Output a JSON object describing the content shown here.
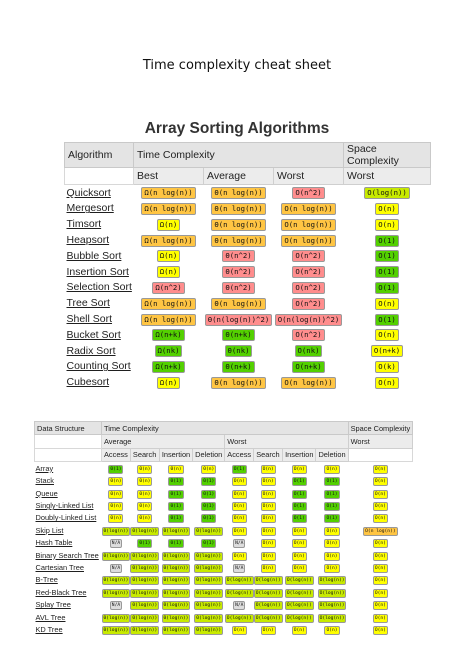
{
  "document": {
    "title": "Time complexity cheat sheet",
    "sorting_section_title": "Array Sorting Algorithms"
  },
  "sorting": {
    "headers": {
      "algorithm": "Algorithm",
      "time_complexity": "Time Complexity",
      "space_complexity": "Space Complexity",
      "best": "Best",
      "average": "Average",
      "worst": "Worst",
      "space_worst": "Worst"
    },
    "rows": [
      {
        "name": "Quicksort",
        "best": {
          "t": "Ω(n log(n))",
          "c": "o"
        },
        "avg": {
          "t": "Θ(n log(n))",
          "c": "o"
        },
        "worst": {
          "t": "O(n^2)",
          "c": "r"
        },
        "space": {
          "t": "O(log(n))",
          "c": "yg"
        }
      },
      {
        "name": "Mergesort",
        "best": {
          "t": "Ω(n log(n))",
          "c": "o"
        },
        "avg": {
          "t": "Θ(n log(n))",
          "c": "o"
        },
        "worst": {
          "t": "O(n log(n))",
          "c": "o"
        },
        "space": {
          "t": "O(n)",
          "c": "y"
        }
      },
      {
        "name": "Timsort",
        "best": {
          "t": "Ω(n)",
          "c": "y"
        },
        "avg": {
          "t": "Θ(n log(n))",
          "c": "o"
        },
        "worst": {
          "t": "O(n log(n))",
          "c": "o"
        },
        "space": {
          "t": "O(n)",
          "c": "y"
        }
      },
      {
        "name": "Heapsort",
        "best": {
          "t": "Ω(n log(n))",
          "c": "o"
        },
        "avg": {
          "t": "Θ(n log(n))",
          "c": "o"
        },
        "worst": {
          "t": "O(n log(n))",
          "c": "o"
        },
        "space": {
          "t": "O(1)",
          "c": "g"
        }
      },
      {
        "name": "Bubble Sort",
        "best": {
          "t": "Ω(n)",
          "c": "y"
        },
        "avg": {
          "t": "Θ(n^2)",
          "c": "r"
        },
        "worst": {
          "t": "O(n^2)",
          "c": "r"
        },
        "space": {
          "t": "O(1)",
          "c": "g"
        }
      },
      {
        "name": "Insertion Sort",
        "best": {
          "t": "Ω(n)",
          "c": "y"
        },
        "avg": {
          "t": "Θ(n^2)",
          "c": "r"
        },
        "worst": {
          "t": "O(n^2)",
          "c": "r"
        },
        "space": {
          "t": "O(1)",
          "c": "g"
        }
      },
      {
        "name": "Selection Sort",
        "best": {
          "t": "Ω(n^2)",
          "c": "r"
        },
        "avg": {
          "t": "Θ(n^2)",
          "c": "r"
        },
        "worst": {
          "t": "O(n^2)",
          "c": "r"
        },
        "space": {
          "t": "O(1)",
          "c": "g"
        }
      },
      {
        "name": "Tree Sort",
        "best": {
          "t": "Ω(n log(n))",
          "c": "o"
        },
        "avg": {
          "t": "Θ(n log(n))",
          "c": "o"
        },
        "worst": {
          "t": "O(n^2)",
          "c": "r"
        },
        "space": {
          "t": "O(n)",
          "c": "y"
        }
      },
      {
        "name": "Shell Sort",
        "best": {
          "t": "Ω(n log(n))",
          "c": "o"
        },
        "avg": {
          "t": "Θ(n(log(n))^2)",
          "c": "r"
        },
        "worst": {
          "t": "O(n(log(n))^2)",
          "c": "r"
        },
        "space": {
          "t": "O(1)",
          "c": "g"
        }
      },
      {
        "name": "Bucket Sort",
        "best": {
          "t": "Ω(n+k)",
          "c": "g"
        },
        "avg": {
          "t": "Θ(n+k)",
          "c": "g"
        },
        "worst": {
          "t": "O(n^2)",
          "c": "r"
        },
        "space": {
          "t": "O(n)",
          "c": "y"
        }
      },
      {
        "name": "Radix Sort",
        "best": {
          "t": "Ω(nk)",
          "c": "g"
        },
        "avg": {
          "t": "Θ(nk)",
          "c": "g"
        },
        "worst": {
          "t": "O(nk)",
          "c": "g"
        },
        "space": {
          "t": "O(n+k)",
          "c": "y"
        }
      },
      {
        "name": "Counting Sort",
        "best": {
          "t": "Ω(n+k)",
          "c": "g"
        },
        "avg": {
          "t": "Θ(n+k)",
          "c": "g"
        },
        "worst": {
          "t": "O(n+k)",
          "c": "g"
        },
        "space": {
          "t": "O(k)",
          "c": "y"
        }
      },
      {
        "name": "Cubesort",
        "best": {
          "t": "Ω(n)",
          "c": "y"
        },
        "avg": {
          "t": "Θ(n log(n))",
          "c": "o"
        },
        "worst": {
          "t": "O(n log(n))",
          "c": "o"
        },
        "space": {
          "t": "O(n)",
          "c": "y"
        }
      }
    ]
  },
  "data_structures": {
    "headers": {
      "data_structure": "Data Structure",
      "time_complexity": "Time Complexity",
      "space_complexity": "Space Complexity",
      "average": "Average",
      "worst": "Worst",
      "space_worst": "Worst",
      "ops": [
        "Access",
        "Search",
        "Insertion",
        "Deletion",
        "Access",
        "Search",
        "Insertion",
        "Deletion"
      ]
    },
    "rows": [
      {
        "name": "Array",
        "cells": [
          {
            "t": "Θ(1)",
            "c": "g"
          },
          {
            "t": "Θ(n)",
            "c": "y"
          },
          {
            "t": "Θ(n)",
            "c": "y"
          },
          {
            "t": "Θ(n)",
            "c": "y"
          },
          {
            "t": "O(1)",
            "c": "g"
          },
          {
            "t": "O(n)",
            "c": "y"
          },
          {
            "t": "O(n)",
            "c": "y"
          },
          {
            "t": "O(n)",
            "c": "y"
          },
          {
            "t": "O(n)",
            "c": "y"
          }
        ]
      },
      {
        "name": "Stack",
        "cells": [
          {
            "t": "Θ(n)",
            "c": "y"
          },
          {
            "t": "Θ(n)",
            "c": "y"
          },
          {
            "t": "Θ(1)",
            "c": "g"
          },
          {
            "t": "Θ(1)",
            "c": "g"
          },
          {
            "t": "O(n)",
            "c": "y"
          },
          {
            "t": "O(n)",
            "c": "y"
          },
          {
            "t": "O(1)",
            "c": "g"
          },
          {
            "t": "O(1)",
            "c": "g"
          },
          {
            "t": "O(n)",
            "c": "y"
          }
        ]
      },
      {
        "name": "Queue",
        "cells": [
          {
            "t": "Θ(n)",
            "c": "y"
          },
          {
            "t": "Θ(n)",
            "c": "y"
          },
          {
            "t": "Θ(1)",
            "c": "g"
          },
          {
            "t": "Θ(1)",
            "c": "g"
          },
          {
            "t": "O(n)",
            "c": "y"
          },
          {
            "t": "O(n)",
            "c": "y"
          },
          {
            "t": "O(1)",
            "c": "g"
          },
          {
            "t": "O(1)",
            "c": "g"
          },
          {
            "t": "O(n)",
            "c": "y"
          }
        ]
      },
      {
        "name": "Singly-Linked List",
        "cells": [
          {
            "t": "Θ(n)",
            "c": "y"
          },
          {
            "t": "Θ(n)",
            "c": "y"
          },
          {
            "t": "Θ(1)",
            "c": "g"
          },
          {
            "t": "Θ(1)",
            "c": "g"
          },
          {
            "t": "O(n)",
            "c": "y"
          },
          {
            "t": "O(n)",
            "c": "y"
          },
          {
            "t": "O(1)",
            "c": "g"
          },
          {
            "t": "O(1)",
            "c": "g"
          },
          {
            "t": "O(n)",
            "c": "y"
          }
        ]
      },
      {
        "name": "Doubly-Linked List",
        "cells": [
          {
            "t": "Θ(n)",
            "c": "y"
          },
          {
            "t": "Θ(n)",
            "c": "y"
          },
          {
            "t": "Θ(1)",
            "c": "g"
          },
          {
            "t": "Θ(1)",
            "c": "g"
          },
          {
            "t": "O(n)",
            "c": "y"
          },
          {
            "t": "O(n)",
            "c": "y"
          },
          {
            "t": "O(1)",
            "c": "g"
          },
          {
            "t": "O(1)",
            "c": "g"
          },
          {
            "t": "O(n)",
            "c": "y"
          }
        ]
      },
      {
        "name": "Skip List",
        "cells": [
          {
            "t": "Θ(log(n))",
            "c": "yg"
          },
          {
            "t": "Θ(log(n))",
            "c": "yg"
          },
          {
            "t": "Θ(log(n))",
            "c": "yg"
          },
          {
            "t": "Θ(log(n))",
            "c": "yg"
          },
          {
            "t": "O(n)",
            "c": "y"
          },
          {
            "t": "O(n)",
            "c": "y"
          },
          {
            "t": "O(n)",
            "c": "y"
          },
          {
            "t": "O(n)",
            "c": "y"
          },
          {
            "t": "O(n log(n))",
            "c": "o"
          }
        ]
      },
      {
        "name": "Hash Table",
        "cells": [
          {
            "t": "N/A",
            "c": "gr"
          },
          {
            "t": "Θ(1)",
            "c": "g"
          },
          {
            "t": "Θ(1)",
            "c": "g"
          },
          {
            "t": "Θ(1)",
            "c": "g"
          },
          {
            "t": "N/A",
            "c": "gr"
          },
          {
            "t": "O(n)",
            "c": "y"
          },
          {
            "t": "O(n)",
            "c": "y"
          },
          {
            "t": "O(n)",
            "c": "y"
          },
          {
            "t": "O(n)",
            "c": "y"
          }
        ]
      },
      {
        "name": "Binary Search Tree",
        "cells": [
          {
            "t": "Θ(log(n))",
            "c": "yg"
          },
          {
            "t": "Θ(log(n))",
            "c": "yg"
          },
          {
            "t": "Θ(log(n))",
            "c": "yg"
          },
          {
            "t": "Θ(log(n))",
            "c": "yg"
          },
          {
            "t": "O(n)",
            "c": "y"
          },
          {
            "t": "O(n)",
            "c": "y"
          },
          {
            "t": "O(n)",
            "c": "y"
          },
          {
            "t": "O(n)",
            "c": "y"
          },
          {
            "t": "O(n)",
            "c": "y"
          }
        ]
      },
      {
        "name": "Cartesian Tree",
        "cells": [
          {
            "t": "N/A",
            "c": "gr"
          },
          {
            "t": "Θ(log(n))",
            "c": "yg"
          },
          {
            "t": "Θ(log(n))",
            "c": "yg"
          },
          {
            "t": "Θ(log(n))",
            "c": "yg"
          },
          {
            "t": "N/A",
            "c": "gr"
          },
          {
            "t": "O(n)",
            "c": "y"
          },
          {
            "t": "O(n)",
            "c": "y"
          },
          {
            "t": "O(n)",
            "c": "y"
          },
          {
            "t": "O(n)",
            "c": "y"
          }
        ]
      },
      {
        "name": "B-Tree",
        "cells": [
          {
            "t": "Θ(log(n))",
            "c": "yg"
          },
          {
            "t": "Θ(log(n))",
            "c": "yg"
          },
          {
            "t": "Θ(log(n))",
            "c": "yg"
          },
          {
            "t": "Θ(log(n))",
            "c": "yg"
          },
          {
            "t": "O(log(n))",
            "c": "yg"
          },
          {
            "t": "O(log(n))",
            "c": "yg"
          },
          {
            "t": "O(log(n))",
            "c": "yg"
          },
          {
            "t": "O(log(n))",
            "c": "yg"
          },
          {
            "t": "O(n)",
            "c": "y"
          }
        ]
      },
      {
        "name": "Red-Black Tree",
        "cells": [
          {
            "t": "Θ(log(n))",
            "c": "yg"
          },
          {
            "t": "Θ(log(n))",
            "c": "yg"
          },
          {
            "t": "Θ(log(n))",
            "c": "yg"
          },
          {
            "t": "Θ(log(n))",
            "c": "yg"
          },
          {
            "t": "O(log(n))",
            "c": "yg"
          },
          {
            "t": "O(log(n))",
            "c": "yg"
          },
          {
            "t": "O(log(n))",
            "c": "yg"
          },
          {
            "t": "O(log(n))",
            "c": "yg"
          },
          {
            "t": "O(n)",
            "c": "y"
          }
        ]
      },
      {
        "name": "Splay Tree",
        "cells": [
          {
            "t": "N/A",
            "c": "gr"
          },
          {
            "t": "Θ(log(n))",
            "c": "yg"
          },
          {
            "t": "Θ(log(n))",
            "c": "yg"
          },
          {
            "t": "Θ(log(n))",
            "c": "yg"
          },
          {
            "t": "N/A",
            "c": "gr"
          },
          {
            "t": "O(log(n))",
            "c": "yg"
          },
          {
            "t": "O(log(n))",
            "c": "yg"
          },
          {
            "t": "O(log(n))",
            "c": "yg"
          },
          {
            "t": "O(n)",
            "c": "y"
          }
        ]
      },
      {
        "name": "AVL Tree",
        "cells": [
          {
            "t": "Θ(log(n))",
            "c": "yg"
          },
          {
            "t": "Θ(log(n))",
            "c": "yg"
          },
          {
            "t": "Θ(log(n))",
            "c": "yg"
          },
          {
            "t": "Θ(log(n))",
            "c": "yg"
          },
          {
            "t": "O(log(n))",
            "c": "yg"
          },
          {
            "t": "O(log(n))",
            "c": "yg"
          },
          {
            "t": "O(log(n))",
            "c": "yg"
          },
          {
            "t": "O(log(n))",
            "c": "yg"
          },
          {
            "t": "O(n)",
            "c": "y"
          }
        ]
      },
      {
        "name": "KD Tree",
        "cells": [
          {
            "t": "Θ(log(n))",
            "c": "yg"
          },
          {
            "t": "Θ(log(n))",
            "c": "yg"
          },
          {
            "t": "Θ(log(n))",
            "c": "yg"
          },
          {
            "t": "Θ(log(n))",
            "c": "yg"
          },
          {
            "t": "O(n)",
            "c": "y"
          },
          {
            "t": "O(n)",
            "c": "y"
          },
          {
            "t": "O(n)",
            "c": "y"
          },
          {
            "t": "O(n)",
            "c": "y"
          },
          {
            "t": "O(n)",
            "c": "y"
          }
        ]
      }
    ]
  },
  "palette": {
    "g": "#53d000",
    "y": "#ffff00",
    "yg": "#c8ea00",
    "o": "#ffc543",
    "r": "#ff8d8d",
    "gr": "#dddddd"
  }
}
